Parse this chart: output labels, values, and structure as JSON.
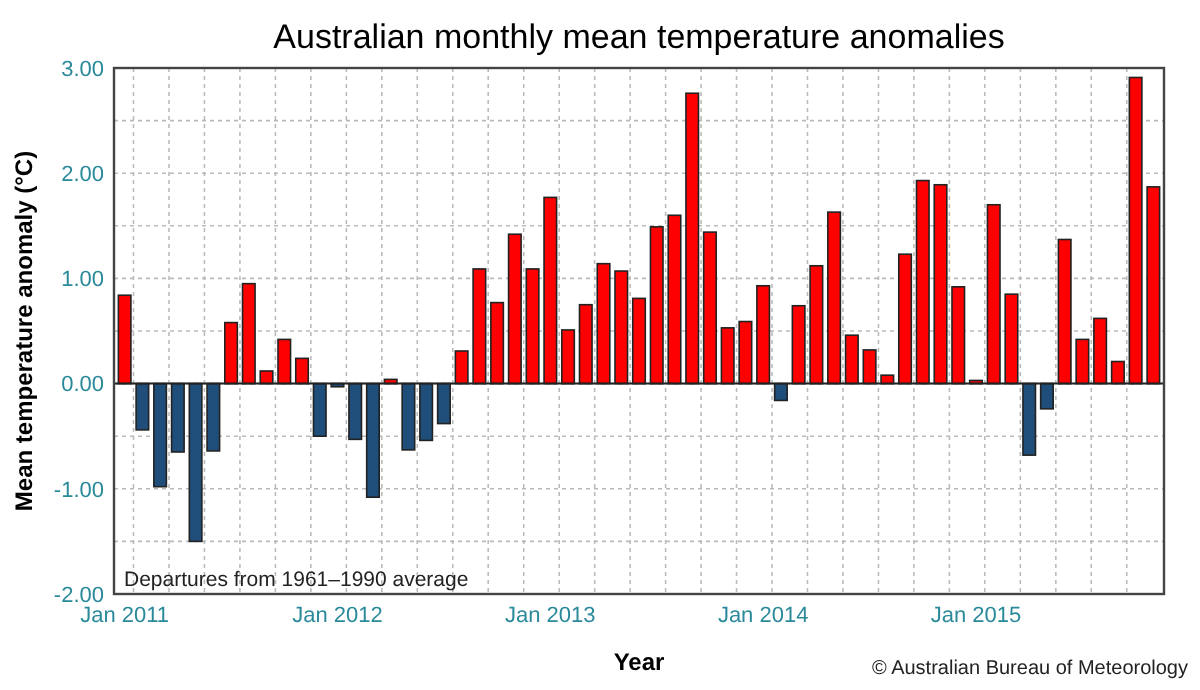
{
  "chart_data": {
    "type": "bar",
    "title": "Australian monthly mean temperature anomalies",
    "xlabel": "Year",
    "ylabel": "Mean temperature anomaly (°C)",
    "categories": [
      "Jan 2011",
      null,
      null,
      null,
      null,
      null,
      null,
      null,
      null,
      null,
      null,
      null,
      "Jan 2012",
      null,
      null,
      null,
      null,
      null,
      null,
      null,
      null,
      null,
      null,
      null,
      "Jan 2013",
      null,
      null,
      null,
      null,
      null,
      null,
      null,
      null,
      null,
      null,
      null,
      "Jan 2014",
      null,
      null,
      null,
      null,
      null,
      null,
      null,
      null,
      null,
      null,
      null,
      "Jan 2015",
      null,
      null,
      null,
      null,
      null,
      null,
      null,
      null,
      null,
      null
    ],
    "values": [
      0.84,
      -0.44,
      -0.98,
      -0.65,
      -1.5,
      -0.64,
      0.58,
      0.95,
      0.12,
      0.42,
      0.24,
      -0.5,
      -0.03,
      -0.53,
      -1.08,
      0.04,
      -0.63,
      -0.54,
      -0.38,
      0.31,
      1.09,
      0.77,
      1.42,
      1.09,
      1.77,
      0.51,
      0.75,
      1.14,
      1.07,
      0.81,
      1.49,
      1.6,
      2.76,
      1.44,
      0.53,
      0.59,
      0.93,
      -0.16,
      0.74,
      1.12,
      1.63,
      0.46,
      0.32,
      0.08,
      1.23,
      1.93,
      1.89,
      0.92,
      0.03,
      1.7,
      0.85,
      -0.68,
      -0.24,
      1.37,
      0.42,
      0.62,
      0.21,
      2.91,
      1.87
    ],
    "colors": [
      "#ff0000",
      "#1f4e7a",
      "#1f4e7a",
      "#1f4e7a",
      "#1f4e7a",
      "#1f4e7a",
      "#ff0000",
      "#ff0000",
      "#ff0000",
      "#ff0000",
      "#ff0000",
      "#1f4e7a",
      "#1f4e7a",
      "#1f4e7a",
      "#1f4e7a",
      "#ff0000",
      "#1f4e7a",
      "#1f4e7a",
      "#1f4e7a",
      "#ff0000",
      "#ff0000",
      "#ff0000",
      "#ff0000",
      "#ff0000",
      "#ff0000",
      "#ff0000",
      "#ff0000",
      "#ff0000",
      "#ff0000",
      "#ff0000",
      "#ff0000",
      "#ff0000",
      "#ff0000",
      "#ff0000",
      "#ff0000",
      "#ff0000",
      "#ff0000",
      "#1f4e7a",
      "#ff0000",
      "#ff0000",
      "#ff0000",
      "#ff0000",
      "#ff0000",
      "#ff0000",
      "#ff0000",
      "#ff0000",
      "#ff0000",
      "#ff0000",
      "#ff0000",
      "#ff0000",
      "#ff0000",
      "#1f4e7a",
      "#1f4e7a",
      "#ff0000",
      "#ff0000",
      "#ff0000",
      "#ff0000",
      "#ff0000",
      "#ff0000"
    ],
    "ylim": [
      -2,
      3
    ],
    "yticks": [
      {
        "value": -2,
        "label": "-2.00"
      },
      {
        "value": -1.5,
        "label": null
      },
      {
        "value": -1,
        "label": "-1.00"
      },
      {
        "value": -0.5,
        "label": null
      },
      {
        "value": 0,
        "label": "0.00"
      },
      {
        "value": 0.5,
        "label": null
      },
      {
        "value": 1,
        "label": "1.00"
      },
      {
        "value": 1.5,
        "label": null
      },
      {
        "value": 2,
        "label": "2.00"
      },
      {
        "value": 2.5,
        "label": null
      },
      {
        "value": 3,
        "label": "3.00"
      }
    ],
    "grid": true,
    "annotations": [
      "Departures from 1961–1990 average",
      "© Australian Bureau of Meteorology"
    ]
  }
}
